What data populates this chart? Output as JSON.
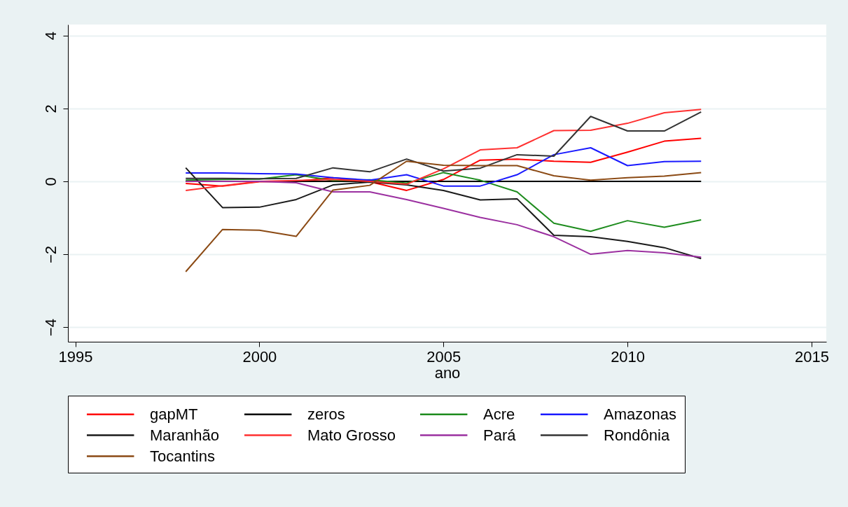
{
  "chart_data": {
    "type": "line",
    "xlabel": "ano",
    "x": [
      1998,
      1999,
      2000,
      2001,
      2002,
      2003,
      2004,
      2005,
      2006,
      2007,
      2008,
      2009,
      2010,
      2011,
      2012
    ],
    "xlim": [
      1994.8,
      2015.4
    ],
    "xticks": [
      1995,
      2000,
      2005,
      2010,
      2015
    ],
    "ylim": [
      -4.4,
      4.3
    ],
    "yticks": [
      -4,
      -2,
      0,
      2,
      4
    ],
    "grid": "y",
    "legend": "bottom",
    "series": [
      {
        "name": "gapMT",
        "color": "#ff0000",
        "values": [
          -0.06,
          -0.13,
          -0.01,
          0,
          0.1,
          -0.01,
          -0.25,
          0.05,
          0.58,
          0.61,
          0.55,
          0.52,
          0.8,
          1.1,
          1.18
        ]
      },
      {
        "name": "zeros",
        "color": "#000000",
        "values": [
          0,
          0,
          0,
          0,
          0,
          0,
          0,
          0,
          0,
          0,
          0,
          0,
          0,
          0,
          0
        ]
      },
      {
        "name": "Acre",
        "color": "#1e8c1e",
        "values": [
          0.03,
          0.05,
          0.06,
          0.18,
          0.02,
          0.04,
          -0.05,
          0.24,
          0.03,
          -0.29,
          -1.15,
          -1.37,
          -1.08,
          -1.26,
          -1.06
        ]
      },
      {
        "name": "Amazonas",
        "color": "#1a1aff",
        "values": [
          0.23,
          0.23,
          0.21,
          0.2,
          0.1,
          0.03,
          0.18,
          -0.13,
          -0.13,
          0.18,
          0.73,
          0.92,
          0.43,
          0.54,
          0.55
        ]
      },
      {
        "name": "Maranhão",
        "color": "#1a1a1a",
        "values": [
          0.37,
          -0.72,
          -0.71,
          -0.5,
          -0.1,
          -0.02,
          -0.1,
          -0.25,
          -0.51,
          -0.48,
          -1.48,
          -1.52,
          -1.65,
          -1.82,
          -2.12
        ]
      },
      {
        "name": "Mato Grosso",
        "color": "#ff3030",
        "values": [
          -0.25,
          -0.12,
          0,
          0.02,
          0.05,
          0,
          -0.08,
          0.34,
          0.86,
          0.92,
          1.39,
          1.4,
          1.59,
          1.88,
          1.97
        ]
      },
      {
        "name": "Pará",
        "color": "#9b30a0",
        "values": [
          0,
          0,
          0,
          -0.04,
          -0.29,
          -0.29,
          -0.5,
          -0.74,
          -0.99,
          -1.19,
          -1.52,
          -2,
          -1.9,
          -1.96,
          -2.08
        ]
      },
      {
        "name": "Rondônia",
        "color": "#333333",
        "values": [
          0.08,
          0.08,
          0.07,
          0.08,
          0.37,
          0.26,
          0.61,
          0.28,
          0.36,
          0.73,
          0.69,
          1.78,
          1.38,
          1.38,
          1.9
        ]
      },
      {
        "name": "Tocantins",
        "color": "#8b4a14",
        "values": [
          -2.48,
          -1.32,
          -1.34,
          -1.51,
          -0.24,
          -0.11,
          0.55,
          0.44,
          0.43,
          0.43,
          0.15,
          0.03,
          0.1,
          0.14,
          0.24
        ]
      }
    ]
  }
}
